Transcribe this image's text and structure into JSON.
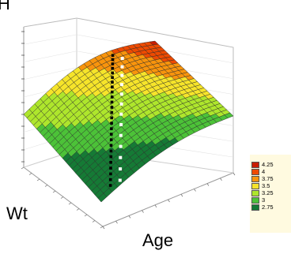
{
  "chart_data": {
    "type": "surface",
    "zlabel": "H",
    "ylabel": "Wt",
    "xlabel": "Age",
    "legend": {
      "placement": "right",
      "entries": [
        {
          "label": "4.25",
          "color": "#c81e00"
        },
        {
          "label": "4",
          "color": "#ee4a00"
        },
        {
          "label": "3.75",
          "color": "#f8940c"
        },
        {
          "label": "3.5",
          "color": "#f6e42a"
        },
        {
          "label": "3.25",
          "color": "#aee62c"
        },
        {
          "label": "3",
          "color": "#4cc238"
        },
        {
          "label": "2.75",
          "color": "#157a35"
        }
      ]
    },
    "grid": true,
    "contour_levels": [
      2.75,
      3,
      3.25,
      3.5,
      3.75,
      4,
      4.25
    ]
  }
}
